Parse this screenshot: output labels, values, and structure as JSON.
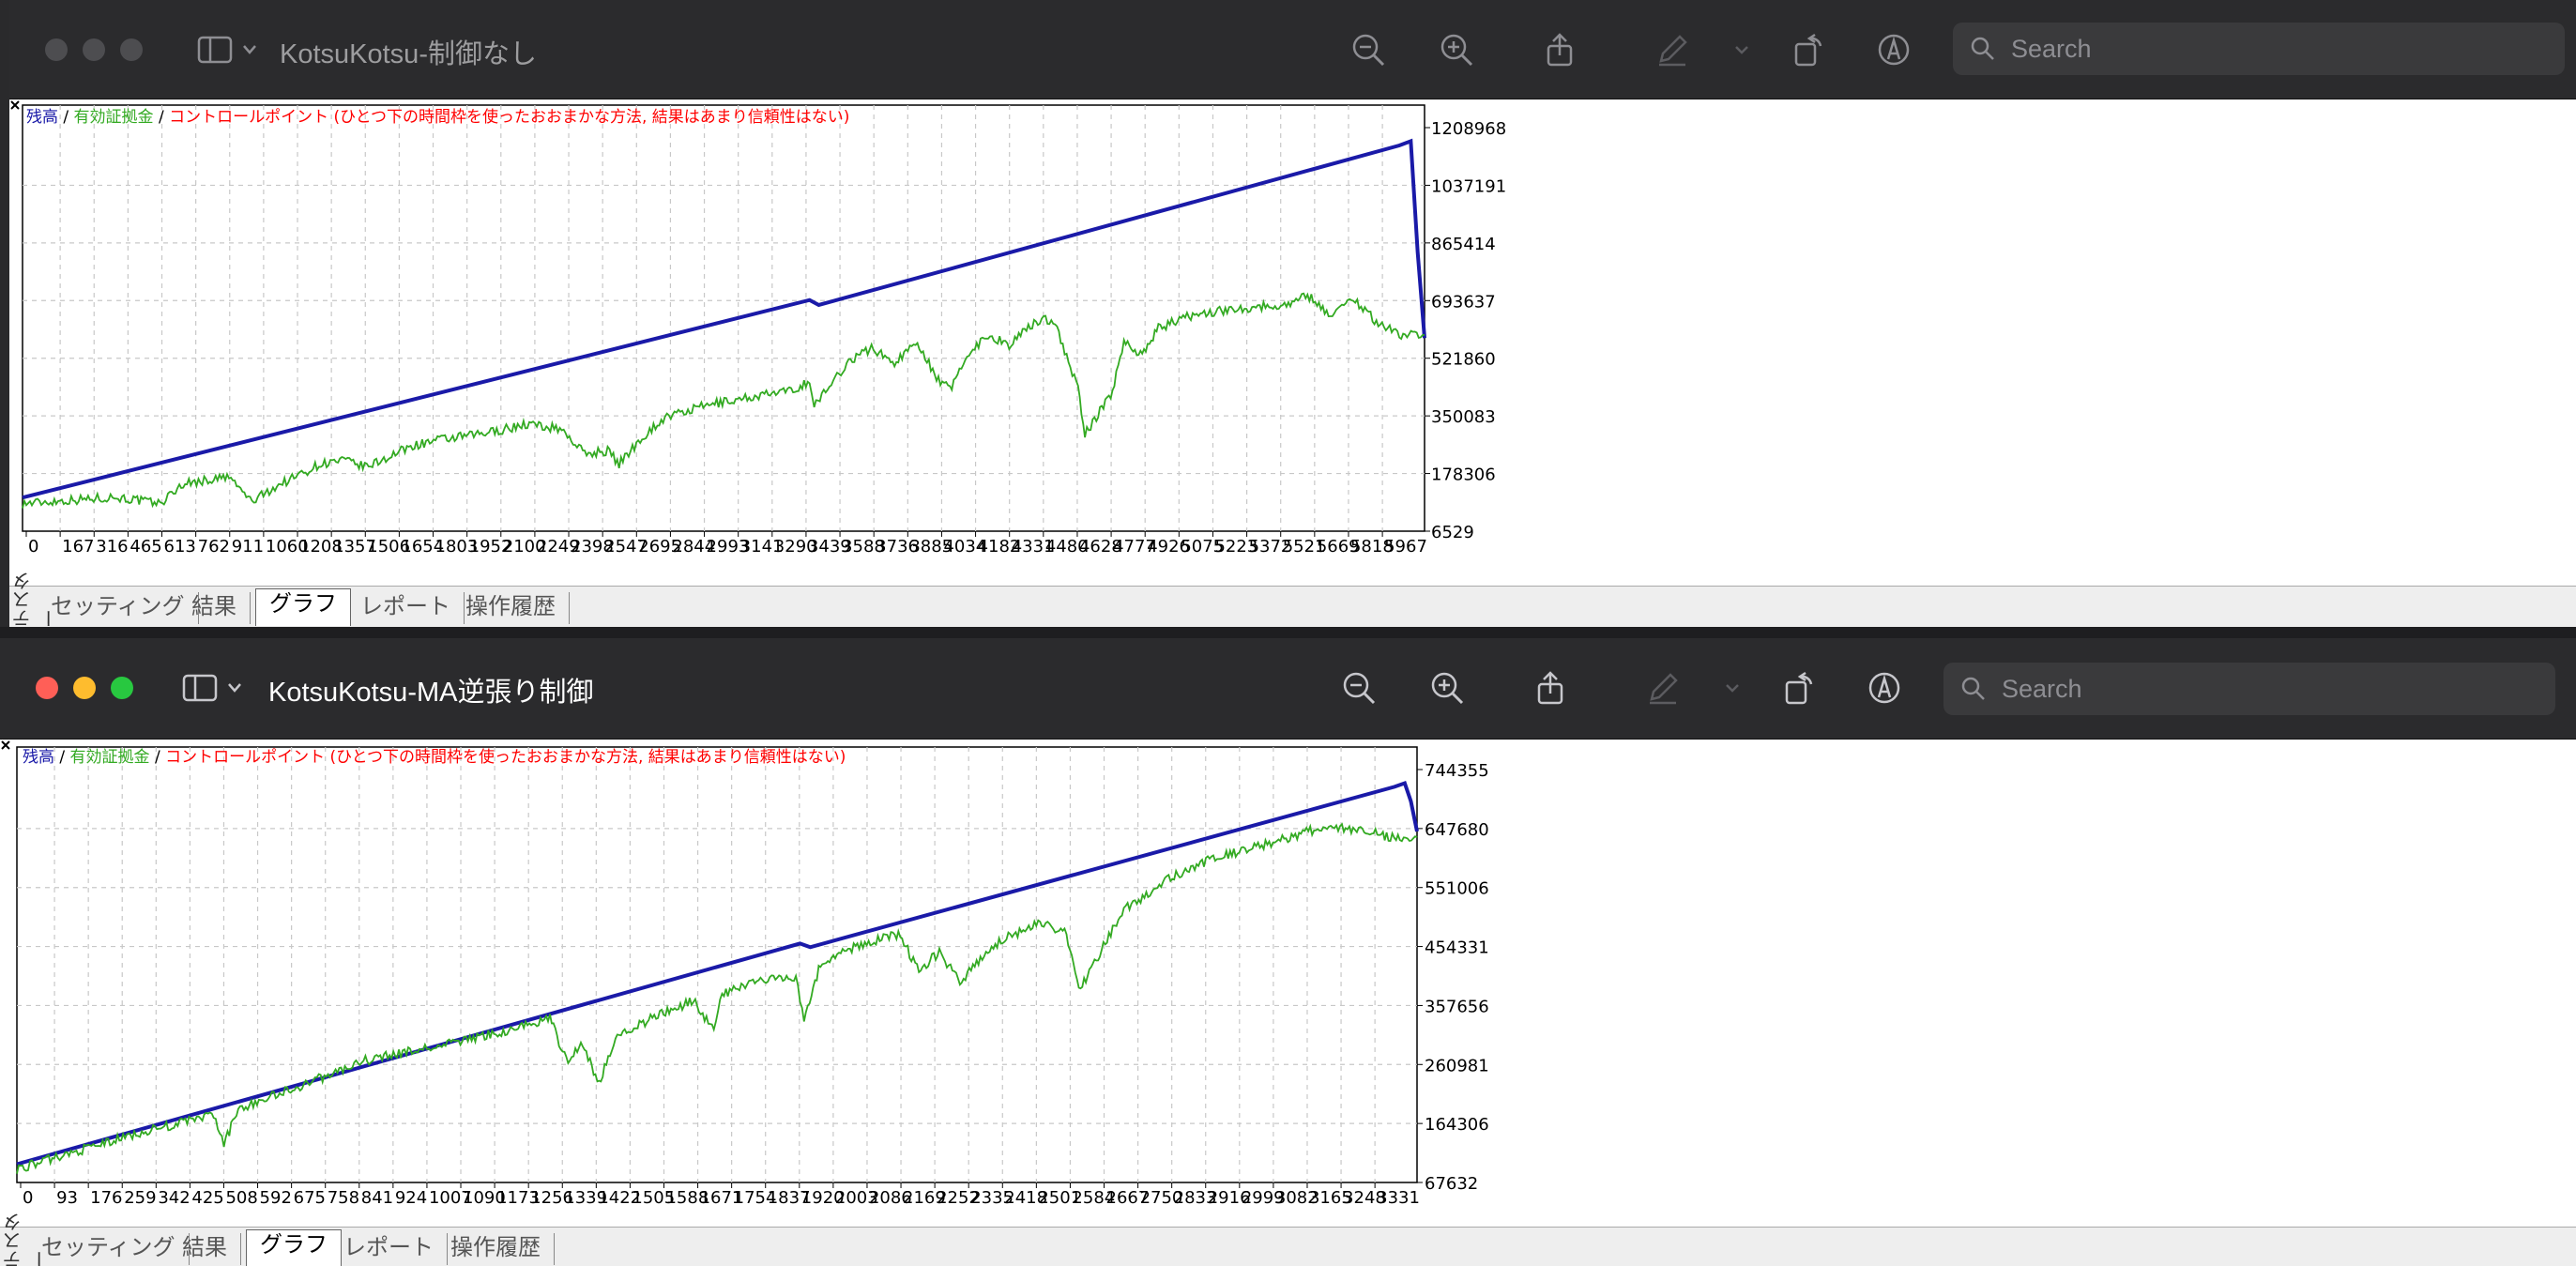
{
  "windows": [
    {
      "title": "KotsuKotsu-制御なし",
      "active": false,
      "search_placeholder": "Search",
      "legend": {
        "balance": "残高",
        "equity": "有効証拠金",
        "note": "コントロールポイント (ひとつ下の時間枠を使ったおおまかな方法, 結果はあまり信頼性はない)",
        "sep": " / "
      },
      "tabs": [
        "セッティング",
        "結果",
        "グラフ",
        "レポート",
        "操作履歴"
      ],
      "active_tab": "グラフ",
      "side_label": "テスター"
    },
    {
      "title": "KotsuKotsu-MA逆張り制御",
      "active": true,
      "search_placeholder": "Search",
      "legend": {
        "balance": "残高",
        "equity": "有効証拠金",
        "note": "コントロールポイント (ひとつ下の時間枠を使ったおおまかな方法, 結果はあまり信頼性はない)",
        "sep": " / "
      },
      "tabs": [
        "セッティング",
        "結果",
        "グラフ",
        "レポート",
        "操作履歴"
      ],
      "active_tab": "グラフ",
      "side_label": "テスター"
    }
  ],
  "colors": {
    "balance": "#1a1aa8",
    "equity": "#33aa22",
    "note": "#ff0000",
    "grid": "#c8c8c8"
  },
  "icons": [
    "magnify-minus-icon",
    "magnify-plus-icon",
    "share-icon",
    "markup-pen-icon",
    "chevron-down-icon",
    "rotate-icon",
    "annotate-icon",
    "search-icon",
    "sidebar-toggle-icon",
    "close-icon"
  ],
  "chart_data": [
    {
      "type": "line",
      "x_ticks": [
        "0",
        "167",
        "316",
        "465",
        "613",
        "762",
        "911",
        "1060",
        "1208",
        "1357",
        "1506",
        "1654",
        "1803",
        "1952",
        "2100",
        "2249",
        "2398",
        "2547",
        "2695",
        "2844",
        "2993",
        "3141",
        "3290",
        "3439",
        "3588",
        "3736",
        "3885",
        "4034",
        "4182",
        "4331",
        "4480",
        "4628",
        "4777",
        "4926",
        "5075",
        "5223",
        "5372",
        "5521",
        "5669",
        "5818",
        "5967"
      ],
      "y_ticks": [
        "1208968",
        "1037191",
        "865414",
        "693637",
        "521860",
        "350083",
        "178306",
        "6529"
      ],
      "ylim": [
        6529,
        1294000
      ],
      "xlim": [
        0,
        6110
      ],
      "grid": true,
      "legend": "top-left",
      "series": [
        {
          "name": "残高",
          "x": [
            0,
            3430,
            3470,
            6000,
            6050,
            6080,
            6110
          ],
          "y": [
            108000,
            705000,
            690000,
            1172000,
            1185000,
            850000,
            590000
          ]
        },
        {
          "name": "有効証拠金",
          "x": [
            0,
            400,
            600,
            700,
            900,
            1000,
            1100,
            1300,
            1400,
            1500,
            1700,
            1800,
            2000,
            2200,
            2350,
            2450,
            2550,
            2600,
            2700,
            2800,
            3000,
            3200,
            3350,
            3430,
            3450,
            3600,
            3700,
            3800,
            3900,
            4000,
            4050,
            4100,
            4200,
            4300,
            4400,
            4450,
            4500,
            4550,
            4600,
            4630,
            4680,
            4750,
            4800,
            4880,
            4950,
            5100,
            5300,
            5500,
            5600,
            5700,
            5800,
            5900,
            6000,
            6110
          ],
          "y": [
            90000,
            110000,
            90000,
            150000,
            170000,
            95000,
            140000,
            210000,
            220000,
            200000,
            265000,
            280000,
            300000,
            330000,
            315000,
            240000,
            250000,
            210000,
            290000,
            350000,
            390000,
            415000,
            430000,
            460000,
            385000,
            520000,
            560000,
            515000,
            580000,
            450000,
            440000,
            520000,
            600000,
            570000,
            630000,
            650000,
            640000,
            530000,
            440000,
            300000,
            350000,
            430000,
            580000,
            540000,
            620000,
            660000,
            680000,
            690000,
            720000,
            660000,
            710000,
            640000,
            600000,
            600000
          ]
        }
      ]
    },
    {
      "type": "line",
      "x_ticks": [
        "0",
        "93",
        "176",
        "259",
        "342",
        "425",
        "508",
        "592",
        "675",
        "758",
        "841",
        "924",
        "1007",
        "1090",
        "1173",
        "1256",
        "1339",
        "1422",
        "1505",
        "1588",
        "1671",
        "1754",
        "1837",
        "1920",
        "2003",
        "2086",
        "2169",
        "2252",
        "2335",
        "2418",
        "2501",
        "2584",
        "2667",
        "2750",
        "2833",
        "2916",
        "2999",
        "3082",
        "3165",
        "3248",
        "3331"
      ],
      "y_ticks": [
        "744355",
        "647680",
        "551006",
        "454331",
        "357656",
        "260981",
        "164306",
        "67632"
      ],
      "ylim": [
        67632,
        790000
      ],
      "xlim": [
        0,
        3415
      ],
      "grid": true,
      "legend": "top-left",
      "series": [
        {
          "name": "残高",
          "x": [
            0,
            1910,
            1935,
            3360,
            3385,
            3400,
            3415
          ],
          "y": [
            98000,
            464000,
            458000,
            724000,
            730000,
            700000,
            650000
          ]
        },
        {
          "name": "有効証拠金",
          "x": [
            0,
            150,
            300,
            480,
            505,
            540,
            700,
            850,
            1000,
            1200,
            1300,
            1340,
            1380,
            1420,
            1460,
            1550,
            1650,
            1700,
            1720,
            1800,
            1900,
            1920,
            1960,
            2050,
            2150,
            2200,
            2250,
            2300,
            2400,
            2500,
            2560,
            2590,
            2620,
            2650,
            2700,
            2750,
            2800,
            2900,
            3000,
            3100,
            3200,
            3300,
            3350,
            3415
          ],
          "y": [
            90000,
            120000,
            150000,
            180000,
            130000,
            190000,
            230000,
            270000,
            290000,
            320000,
            340000,
            270000,
            300000,
            230000,
            310000,
            340000,
            370000,
            320000,
            380000,
            400000,
            410000,
            340000,
            430000,
            460000,
            480000,
            420000,
            450000,
            400000,
            470000,
            500000,
            480000,
            390000,
            420000,
            460000,
            520000,
            540000,
            570000,
            600000,
            620000,
            640000,
            660000,
            650000,
            640000,
            640000
          ]
        }
      ]
    }
  ]
}
